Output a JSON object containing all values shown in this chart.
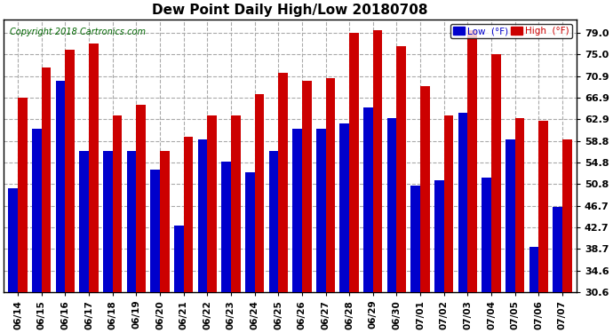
{
  "title": "Dew Point Daily High/Low 20180708",
  "copyright": "Copyright 2018 Cartronics.com",
  "dates": [
    "06/14",
    "06/15",
    "06/16",
    "06/17",
    "06/18",
    "06/19",
    "06/20",
    "06/21",
    "06/22",
    "06/23",
    "06/24",
    "06/25",
    "06/26",
    "06/27",
    "06/28",
    "06/29",
    "06/30",
    "07/01",
    "07/02",
    "07/03",
    "07/04",
    "07/05",
    "07/06",
    "07/07"
  ],
  "low": [
    50.0,
    61.0,
    70.0,
    57.0,
    57.0,
    57.0,
    53.5,
    43.0,
    59.0,
    55.0,
    53.0,
    57.0,
    61.0,
    61.0,
    62.0,
    65.0,
    63.0,
    50.5,
    51.5,
    64.0,
    52.0,
    59.0,
    39.0,
    46.5
  ],
  "high": [
    66.9,
    72.5,
    75.9,
    77.0,
    63.5,
    65.5,
    57.0,
    59.5,
    63.5,
    63.5,
    67.5,
    71.5,
    70.0,
    70.5,
    79.0,
    79.5,
    76.5,
    69.0,
    63.5,
    79.5,
    75.0,
    63.0,
    62.5,
    59.0
  ],
  "yticks": [
    30.6,
    34.6,
    38.7,
    42.7,
    46.7,
    50.8,
    54.8,
    58.8,
    62.9,
    66.9,
    70.9,
    75.0,
    79.0
  ],
  "ymin": 30.6,
  "ymax": 81.5,
  "low_color": "#0000cc",
  "high_color": "#cc0000",
  "bg_color": "#ffffff",
  "grid_color": "#aaaaaa",
  "bar_width": 0.4,
  "legend_low_label": "Low  (°F)",
  "legend_high_label": "High  (°F)"
}
